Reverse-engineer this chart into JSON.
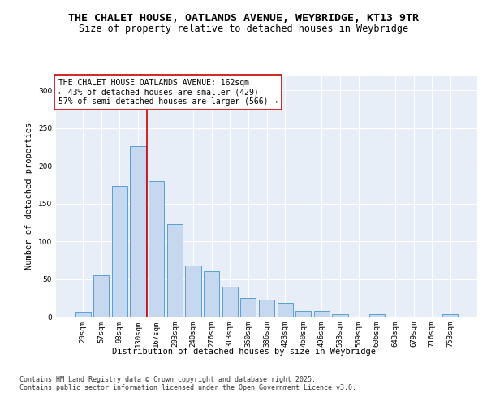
{
  "title_line1": "THE CHALET HOUSE, OATLANDS AVENUE, WEYBRIDGE, KT13 9TR",
  "title_line2": "Size of property relative to detached houses in Weybridge",
  "xlabel": "Distribution of detached houses by size in Weybridge",
  "ylabel": "Number of detached properties",
  "categories": [
    "20sqm",
    "57sqm",
    "93sqm",
    "130sqm",
    "167sqm",
    "203sqm",
    "240sqm",
    "276sqm",
    "313sqm",
    "350sqm",
    "386sqm",
    "423sqm",
    "460sqm",
    "496sqm",
    "533sqm",
    "569sqm",
    "606sqm",
    "643sqm",
    "679sqm",
    "716sqm",
    "753sqm"
  ],
  "values": [
    6,
    55,
    173,
    226,
    180,
    123,
    68,
    60,
    40,
    25,
    23,
    18,
    8,
    8,
    3,
    0,
    3,
    0,
    0,
    0,
    3
  ],
  "bar_color": "#c5d8f0",
  "bar_edge_color": "#5a9fd4",
  "vline_color": "#cc0000",
  "annotation_text": "THE CHALET HOUSE OATLANDS AVENUE: 162sqm\n← 43% of detached houses are smaller (429)\n57% of semi-detached houses are larger (566) →",
  "annotation_box_color": "#ffffff",
  "annotation_box_edge": "#cc0000",
  "ylim": [
    0,
    320
  ],
  "yticks": [
    0,
    50,
    100,
    150,
    200,
    250,
    300
  ],
  "background_color": "#e8eef8",
  "footer_text": "Contains HM Land Registry data © Crown copyright and database right 2025.\nContains public sector information licensed under the Open Government Licence v3.0.",
  "title_fontsize": 9.5,
  "subtitle_fontsize": 8.5,
  "axis_label_fontsize": 7.5,
  "tick_fontsize": 6.5,
  "annotation_fontsize": 7,
  "footer_fontsize": 6
}
